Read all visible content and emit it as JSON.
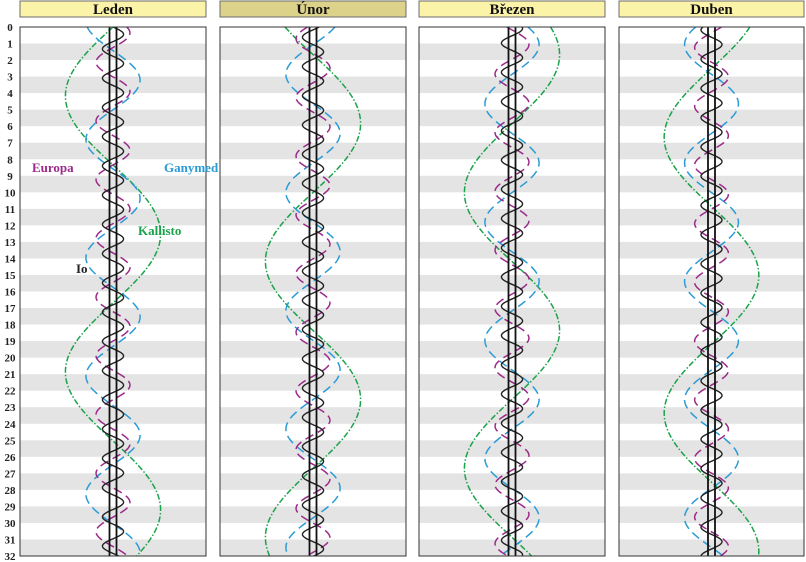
{
  "chart_data": {
    "type": "line",
    "y_axis": {
      "ticks": [
        0,
        1,
        2,
        3,
        4,
        5,
        6,
        7,
        8,
        9,
        10,
        11,
        12,
        13,
        14,
        15,
        16,
        17,
        18,
        19,
        20,
        21,
        22,
        23,
        24,
        25,
        26,
        27,
        28,
        29,
        30,
        31,
        32
      ],
      "range": [
        0,
        32
      ],
      "inverted": true,
      "alternating_row_shading": true
    },
    "panels": [
      {
        "month": "Leden"
      },
      {
        "month": "Únor"
      },
      {
        "month": "Březen"
      },
      {
        "month": "Duben"
      }
    ],
    "series": [
      {
        "name": "Io",
        "color": "#222222",
        "style": "solid",
        "period_days": 1.769,
        "amplitude_rel": 0.116
      },
      {
        "name": "Europa",
        "color": "#9b2a8a",
        "style": "dashed",
        "period_days": 3.551,
        "amplitude_rel": 0.186
      },
      {
        "name": "Ganymed",
        "color": "#2a9bd6",
        "style": "dashed",
        "period_days": 7.155,
        "amplitude_rel": 0.297
      },
      {
        "name": "Kallisto",
        "color": "#1aa34a",
        "style": "dashdot",
        "period_days": 16.689,
        "amplitude_rel": 0.522
      }
    ],
    "panel_phases": [
      {
        "Io": 0.0,
        "Europa": 0.15,
        "Ganymed": 0.8,
        "Kallisto": 0.5
      },
      {
        "Io": 0.4,
        "Europa": 0.55,
        "Ganymed": 0.35,
        "Kallisto": 0.9
      },
      {
        "Io": 0.2,
        "Europa": 0.95,
        "Ganymed": 0.1,
        "Kallisto": 0.15
      },
      {
        "Io": 0.65,
        "Europa": 0.4,
        "Ganymed": 0.6,
        "Kallisto": 0.35
      }
    ],
    "annotations": [
      {
        "text": "Europa",
        "panel": 0,
        "series": "Europa"
      },
      {
        "text": "Ganymed",
        "panel": 0,
        "series": "Ganymed"
      },
      {
        "text": "Kallisto",
        "panel": 0,
        "series": "Kallisto"
      },
      {
        "text": "Io",
        "panel": 0,
        "series": "Io"
      }
    ],
    "colors": {
      "header_bg": "#fbf3a8",
      "header_active_bg": "#ddd28a",
      "header_border": "#6b6b6b",
      "row_shade": "#e4e4e4",
      "frame": "#333333"
    }
  }
}
